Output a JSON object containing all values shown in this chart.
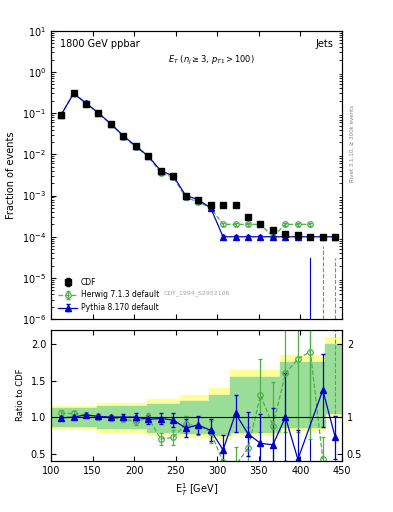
{
  "title_left": "1800 GeV ppbar",
  "title_right": "Jets",
  "annotation": "E_T (n_j \\u2265 3, p_{T1}>100)",
  "watermark": "CDF_1994_S2952106",
  "xlabel": "E$_T^1$ [GeV]",
  "ylabel_main": "Fraction of events",
  "ylabel_ratio": "Ratio to CDF",
  "right_label": "Rivet 3.1.10, ≥ 300k events",
  "xlim": [
    100,
    450
  ],
  "ylim_main": [
    1e-06,
    10
  ],
  "ylim_ratio": [
    0.4,
    2.2
  ],
  "cdf_x": [
    112,
    127,
    142,
    157,
    172,
    187,
    202,
    217,
    232,
    247,
    262,
    277,
    292,
    307,
    322,
    337,
    352,
    367,
    382,
    397,
    412,
    427,
    442
  ],
  "cdf_y": [
    0.09,
    0.3,
    0.17,
    0.1,
    0.055,
    0.028,
    0.016,
    0.009,
    0.004,
    0.003,
    0.001,
    0.0008,
    0.0006,
    0.0006,
    0.0006,
    0.0003,
    0.0002,
    0.00015,
    0.00012,
    0.00011,
    0.0001,
    0.0001,
    0.0001
  ],
  "cdf_yerr_lo": [
    0.01,
    0.03,
    0.015,
    0.008,
    0.004,
    0.002,
    0.001,
    0.0007,
    0.0004,
    0.0003,
    0.0001,
    8e-05,
    6e-05,
    6e-05,
    6e-05,
    3e-05,
    2e-05,
    1.5e-05,
    1.2e-05,
    1.1e-05,
    1e-05,
    1e-05,
    1e-05
  ],
  "cdf_yerr_hi": [
    0.01,
    0.03,
    0.015,
    0.008,
    0.004,
    0.002,
    0.001,
    0.0007,
    0.0004,
    0.0003,
    0.0001,
    8e-05,
    6e-05,
    6e-05,
    6e-05,
    3e-05,
    2e-05,
    1.5e-05,
    1.2e-05,
    1.1e-05,
    1e-05,
    1e-05,
    1e-05
  ],
  "herwig_x": [
    112,
    127,
    142,
    157,
    172,
    187,
    202,
    217,
    232,
    247,
    262,
    277,
    292,
    307,
    322,
    337,
    352,
    367,
    382,
    397,
    412,
    427,
    442
  ],
  "herwig_y": [
    0.09,
    0.31,
    0.175,
    0.1,
    0.054,
    0.027,
    0.015,
    0.009,
    0.0035,
    0.0028,
    0.0009,
    0.0007,
    0.0005,
    0.0002,
    0.0002,
    0.0002,
    0.0002,
    0.0001,
    0.0002,
    0.0002,
    0.0002,
    null,
    null
  ],
  "herwig_yerr_lo": [
    0.005,
    0.015,
    0.008,
    0.005,
    0.003,
    0.001,
    0.001,
    0.0005,
    0.0003,
    0.0002,
    0.0001,
    7e-05,
    5e-05,
    2e-05,
    2e-05,
    2e-05,
    2e-05,
    1e-05,
    2e-05,
    2e-05,
    2e-05,
    0,
    0
  ],
  "herwig_yerr_hi": [
    0.005,
    0.015,
    0.008,
    0.005,
    0.003,
    0.001,
    0.001,
    0.0005,
    0.0003,
    0.0002,
    0.0001,
    7e-05,
    5e-05,
    2e-05,
    2e-05,
    2e-05,
    2e-05,
    1e-05,
    2e-05,
    2e-05,
    2e-05,
    0,
    0
  ],
  "pythia_x": [
    112,
    127,
    142,
    157,
    172,
    187,
    202,
    217,
    232,
    247,
    262,
    277,
    292,
    307,
    322,
    337,
    352,
    367,
    382,
    397,
    412,
    427,
    442
  ],
  "pythia_y": [
    0.09,
    0.3,
    0.175,
    0.1,
    0.055,
    0.028,
    0.016,
    0.009,
    0.004,
    0.003,
    0.001,
    0.0008,
    0.0005,
    0.0001,
    0.0001,
    0.0001,
    0.0001,
    0.0001,
    0.0001,
    0.0001,
    null,
    0.0001,
    0.0001
  ],
  "pythia_yerr_lo": [
    0.005,
    0.015,
    0.008,
    0.005,
    0.003,
    0.001,
    0.001,
    0.0005,
    0.0003,
    0.0002,
    0.0001,
    8e-05,
    5e-05,
    1e-05,
    1e-05,
    1e-05,
    1e-05,
    1e-05,
    1e-05,
    1e-05,
    0,
    1e-05,
    1e-05
  ],
  "pythia_yerr_hi": [
    0.005,
    0.015,
    0.008,
    0.005,
    0.003,
    0.001,
    0.001,
    0.0005,
    0.0003,
    0.0002,
    0.0001,
    8e-05,
    5e-05,
    1e-05,
    1e-05,
    1e-05,
    1e-05,
    1e-05,
    1e-05,
    1e-05,
    0,
    1e-05,
    1e-05
  ],
  "ratio_herwig_x": [
    112,
    127,
    142,
    157,
    172,
    187,
    202,
    217,
    232,
    247,
    262,
    277,
    292,
    307,
    322,
    337,
    352,
    367,
    382,
    397,
    412,
    427,
    442
  ],
  "ratio_herwig_y": [
    1.05,
    1.05,
    1.03,
    1.0,
    0.99,
    0.97,
    0.94,
    0.99,
    0.7,
    0.72,
    0.9,
    0.88,
    0.8,
    0.38,
    0.34,
    0.57,
    1.3,
    0.88,
    1.6,
    1.8,
    1.9,
    0.42,
    null
  ],
  "ratio_herwig_yerr": [
    0.05,
    0.04,
    0.04,
    0.04,
    0.04,
    0.04,
    0.05,
    0.06,
    0.08,
    0.1,
    0.12,
    0.12,
    0.15,
    0.2,
    0.25,
    0.3,
    0.5,
    0.6,
    0.8,
    1.0,
    1.2,
    0.3,
    0
  ],
  "ratio_pythia_x": [
    112,
    127,
    142,
    157,
    172,
    187,
    202,
    217,
    232,
    247,
    262,
    277,
    292,
    307,
    322,
    337,
    352,
    367,
    382,
    397,
    412,
    427,
    442
  ],
  "ratio_pythia_y": [
    0.99,
    1.0,
    1.03,
    1.01,
    1.0,
    1.0,
    1.0,
    0.97,
    0.98,
    0.96,
    0.85,
    0.89,
    0.82,
    0.55,
    1.05,
    0.77,
    0.64,
    0.62,
    1.0,
    0.42,
    null,
    1.37,
    0.72
  ],
  "ratio_pythia_yerr": [
    0.03,
    0.03,
    0.03,
    0.03,
    0.03,
    0.04,
    0.05,
    0.06,
    0.08,
    0.1,
    0.12,
    0.12,
    0.15,
    0.2,
    0.25,
    0.3,
    0.4,
    0.5,
    0.6,
    0.4,
    0,
    0.5,
    0.3
  ],
  "band_yellow_x": [
    100,
    155,
    215,
    255,
    290,
    315,
    375,
    430,
    450
  ],
  "band_yellow_lo": [
    0.85,
    0.8,
    0.75,
    0.73,
    0.7,
    0.75,
    0.82,
    1.0,
    1.0
  ],
  "band_yellow_hi": [
    1.15,
    1.2,
    1.25,
    1.3,
    1.4,
    1.65,
    1.85,
    2.1,
    2.1
  ],
  "band_green_x": [
    100,
    155,
    215,
    255,
    290,
    315,
    375,
    430,
    450
  ],
  "band_green_lo": [
    0.88,
    0.85,
    0.8,
    0.78,
    0.75,
    0.8,
    0.87,
    1.05,
    1.05
  ],
  "band_green_hi": [
    1.12,
    1.15,
    1.18,
    1.22,
    1.3,
    1.55,
    1.75,
    2.0,
    2.0
  ],
  "color_cdf": "#000000",
  "color_herwig": "#4daf4a",
  "color_pythia": "#0000cc",
  "color_yellow_band": "#ffff99",
  "color_green_band": "#99dd99",
  "bg_color": "#ffffff"
}
